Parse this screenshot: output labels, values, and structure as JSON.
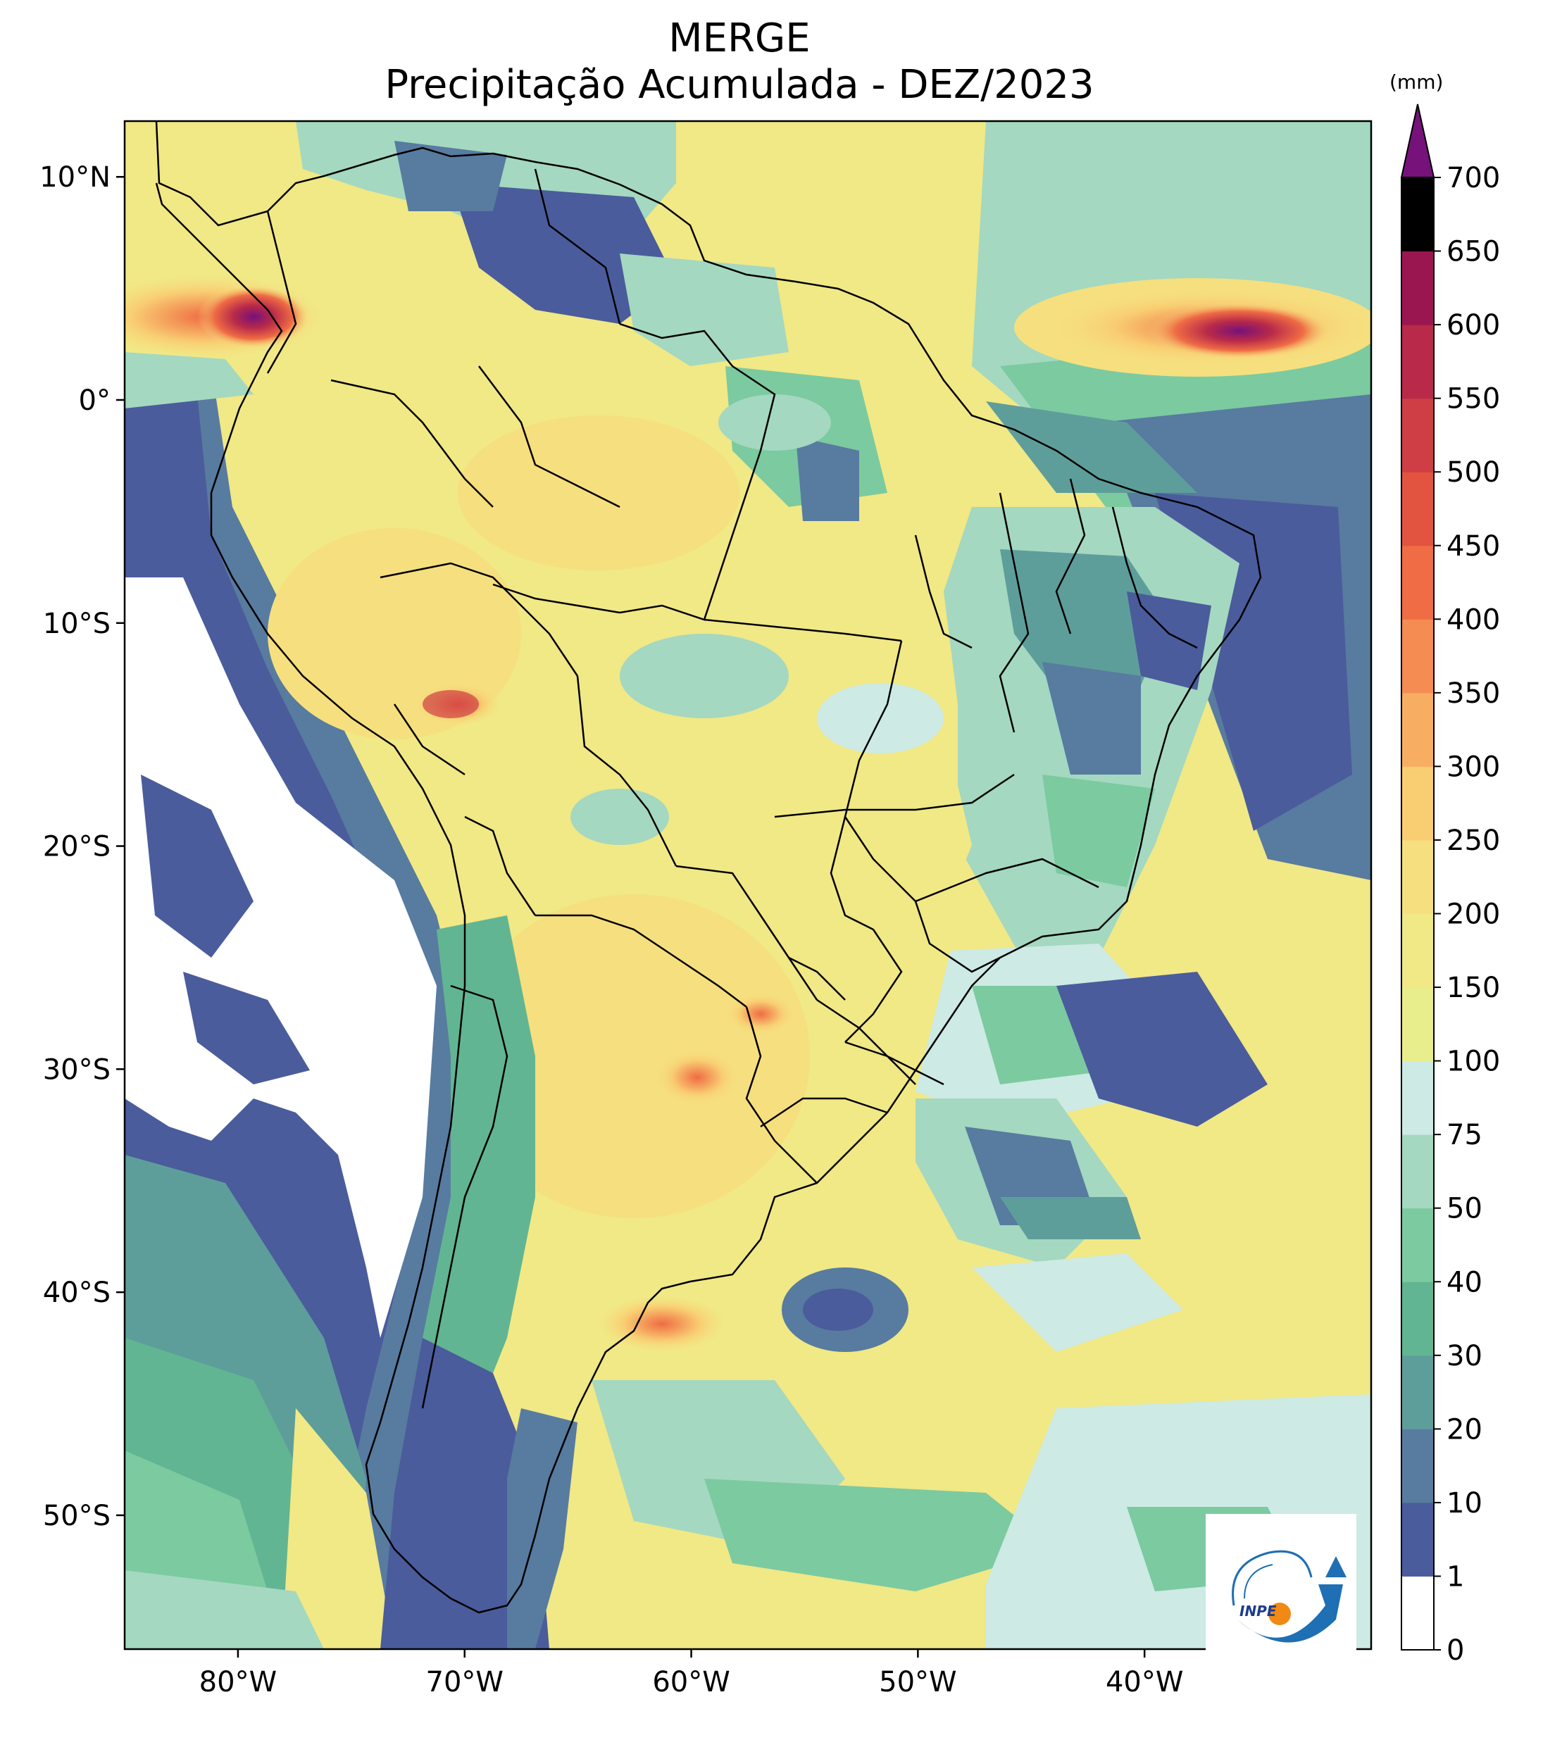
{
  "title": "MERGE",
  "subtitle": "Precipitação Acumulada - DEZ/2023",
  "colorbar": {
    "unit": "(mm)",
    "levels": [
      "0",
      "1",
      "10",
      "20",
      "30",
      "40",
      "50",
      "75",
      "100",
      "150",
      "200",
      "250",
      "300",
      "350",
      "400",
      "450",
      "500",
      "550",
      "600",
      "650",
      "700"
    ],
    "colors": [
      "#ffffff",
      "#4a5c9c",
      "#587ba0",
      "#5e9e9a",
      "#62b592",
      "#7ccaa0",
      "#a4d8c0",
      "#cdeae4",
      "#e9ee8c",
      "#f1e886",
      "#f6df7e",
      "#f9cd72",
      "#f8ae62",
      "#f58c52",
      "#ef6c44",
      "#e2543f",
      "#cf3e44",
      "#b8294a",
      "#9a1650"
    ],
    "extend_color": "#76127a"
  },
  "axes": {
    "lon_ticks": [
      "80°W",
      "70°W",
      "60°W",
      "50°W",
      "40°W"
    ],
    "lat_ticks": [
      "10°N",
      "0°",
      "10°S",
      "20°S",
      "30°S",
      "40°S",
      "50°S"
    ],
    "lon_range": [
      -85,
      -30
    ],
    "lat_range": [
      -56,
      12.5
    ]
  },
  "logo": {
    "text": "INPE",
    "icon": "inpe-logo-icon"
  }
}
